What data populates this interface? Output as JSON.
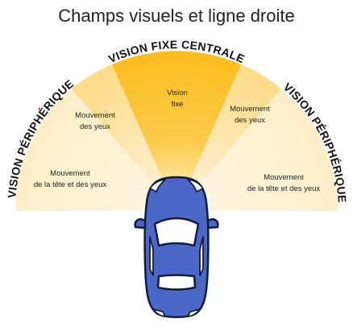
{
  "title": "Champs visuels et ligne droite",
  "arc_labels": {
    "central": "VISION FIXE CENTRALE",
    "peripheral_left": "VISION PÉRIPHÉRIQUE",
    "peripheral_right": "VISION PÉRIPHÉRIQUE"
  },
  "zones": {
    "center": {
      "line1": "Vision",
      "line2": "fixe"
    },
    "left_eyes": {
      "line1": "Mouvement",
      "line2": "des yeux"
    },
    "right_eyes": {
      "line1": "Mouvement",
      "line2": "des yeux"
    },
    "left_head": {
      "line1": "Mouvement",
      "line2": "de la tête et des yeux"
    },
    "right_head": {
      "line1": "Mouvement",
      "line2": "de la tête et des yeux"
    }
  },
  "colors": {
    "center": "#fbbd1c",
    "middle": "#fddd8d",
    "outer": "#fdf0cd",
    "car_body": "#4a68c8",
    "car_outline": "#151c3a",
    "glass": "#ffffff"
  }
}
